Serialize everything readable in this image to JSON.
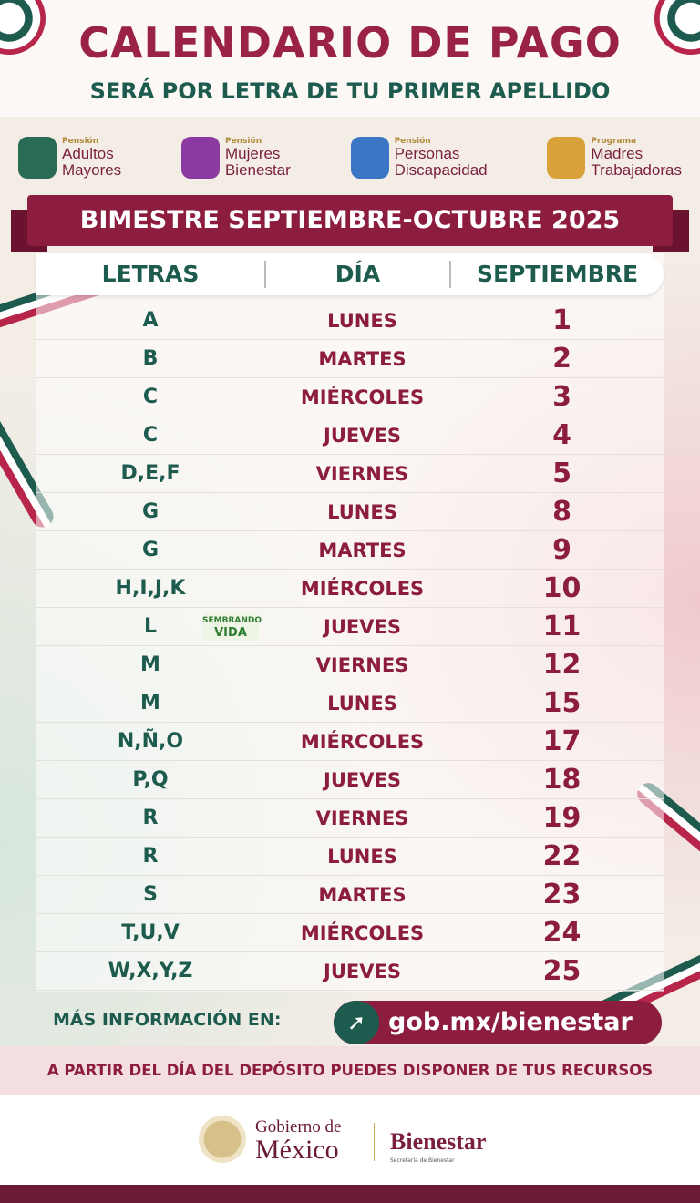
{
  "header": {
    "title": "CALENDARIO DE PAGO",
    "subtitle": "SERÁ POR LETRA DE TU PRIMER APELLIDO"
  },
  "programs": [
    {
      "kicker": "Pensión",
      "line1": "Adultos",
      "line2": "Mayores",
      "color": "#2a6b55"
    },
    {
      "kicker": "Pensión",
      "line1": "Mujeres",
      "line2": "Bienestar",
      "color": "#8a3aa0"
    },
    {
      "kicker": "Pensión",
      "line1": "Personas",
      "line2": "Discapacidad",
      "color": "#3a76c4"
    },
    {
      "kicker": "Programa",
      "line1": "Madres",
      "line2": "Trabajadoras",
      "color": "#d9a13a"
    }
  ],
  "banner": "BIMESTRE SEPTIEMBRE-OCTUBRE 2025",
  "table": {
    "headers": [
      "LETRAS",
      "DÍA",
      "SEPTIEMBRE"
    ],
    "rows": [
      [
        "A",
        "LUNES",
        "1"
      ],
      [
        "B",
        "MARTES",
        "2"
      ],
      [
        "C",
        "MIÉRCOLES",
        "3"
      ],
      [
        "C",
        "JUEVES",
        "4"
      ],
      [
        "D,E,F",
        "VIERNES",
        "5"
      ],
      [
        "G",
        "LUNES",
        "8"
      ],
      [
        "G",
        "MARTES",
        "9"
      ],
      [
        "H,I,J,K",
        "MIÉRCOLES",
        "10"
      ],
      [
        "L",
        "JUEVES",
        "11"
      ],
      [
        "M",
        "VIERNES",
        "12"
      ],
      [
        "M",
        "LUNES",
        "15"
      ],
      [
        "N,Ñ,O",
        "MIÉRCOLES",
        "17"
      ],
      [
        "P,Q",
        "JUEVES",
        "18"
      ],
      [
        "R",
        "VIERNES",
        "19"
      ],
      [
        "R",
        "LUNES",
        "22"
      ],
      [
        "S",
        "MARTES",
        "23"
      ],
      [
        "T,U,V",
        "MIÉRCOLES",
        "24"
      ],
      [
        "W,X,Y,Z",
        "JUEVES",
        "25"
      ]
    ]
  },
  "sembrando_vida": {
    "line1": "SEMBRANDO",
    "line2": "VIDA"
  },
  "more_info": {
    "label": "MÁS INFORMACIÓN EN:",
    "link": "gob.mx/bienestar"
  },
  "notice": "A PARTIR DEL DÍA DEL DEPÓSITO PUEDES DISPONER DE TUS RECURSOS",
  "footer": {
    "gob_line1": "Gobierno de",
    "gob_line2": "México",
    "bienestar": "Bienestar",
    "secretaria": "Secretaría de Bienestar"
  },
  "colors": {
    "maroon": "#8c1d3f",
    "green": "#1e5b4f"
  }
}
